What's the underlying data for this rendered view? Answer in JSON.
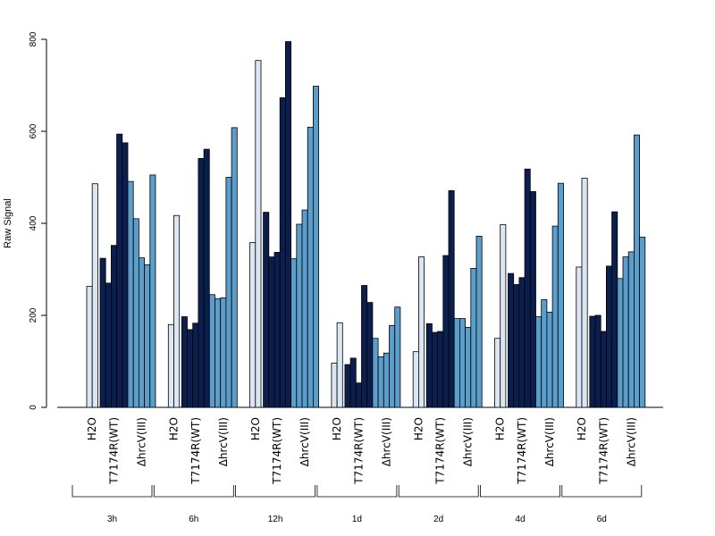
{
  "chart_data": {
    "type": "bar",
    "title": "",
    "xlabel": "",
    "ylabel": "Raw Signal",
    "ylim": [
      0,
      800
    ],
    "yticks": [
      0,
      200,
      400,
      600,
      800
    ],
    "condition_labels": [
      "H2O",
      "T7174R(WT)",
      "ΔhrcV(III)"
    ],
    "condition_colors": [
      "#dbe6f3",
      "#0b1f4f",
      "#5b9dcb"
    ],
    "groups": [
      {
        "name": "3h",
        "conditions": [
          [
            263,
            486
          ],
          [
            324,
            270,
            352,
            594,
            575
          ],
          [
            491,
            410,
            325,
            310,
            505
          ]
        ]
      },
      {
        "name": "6h",
        "conditions": [
          [
            180,
            417
          ],
          [
            197,
            169,
            183,
            541,
            561
          ],
          [
            245,
            236,
            238,
            500,
            608
          ]
        ]
      },
      {
        "name": "12h",
        "conditions": [
          [
            358,
            754
          ],
          [
            424,
            327,
            337,
            673,
            795
          ],
          [
            323,
            398,
            429,
            609,
            698
          ]
        ]
      },
      {
        "name": "1d",
        "conditions": [
          [
            96,
            184
          ],
          [
            93,
            107,
            53,
            265,
            228
          ],
          [
            150,
            110,
            118,
            178,
            218
          ]
        ]
      },
      {
        "name": "2d",
        "conditions": [
          [
            121,
            327
          ],
          [
            182,
            163,
            165,
            330,
            471
          ],
          [
            193,
            193,
            174,
            302,
            372
          ]
        ]
      },
      {
        "name": "4d",
        "conditions": [
          [
            150,
            397
          ],
          [
            291,
            267,
            282,
            518,
            469
          ],
          [
            197,
            234,
            207,
            394,
            487
          ]
        ]
      },
      {
        "name": "6d",
        "conditions": [
          [
            305,
            498
          ],
          [
            198,
            200,
            165,
            307,
            425
          ],
          [
            280,
            327,
            338,
            592,
            370
          ]
        ]
      }
    ],
    "grid": false,
    "legend": "none"
  }
}
